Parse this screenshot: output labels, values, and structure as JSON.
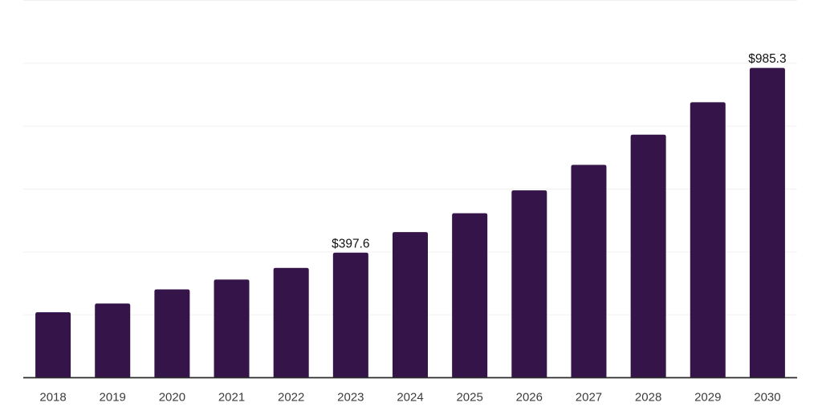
{
  "chart_data": {
    "type": "bar",
    "title": "",
    "xlabel": "",
    "ylabel": "",
    "categories": [
      "2018",
      "2019",
      "2020",
      "2021",
      "2022",
      "2023",
      "2024",
      "2025",
      "2026",
      "2027",
      "2028",
      "2029",
      "2030"
    ],
    "values": [
      208,
      236,
      281,
      312,
      349,
      397.6,
      463,
      523,
      596,
      677,
      773,
      876,
      985.3
    ],
    "value_labels": [
      null,
      null,
      null,
      null,
      null,
      "$397.6",
      null,
      null,
      null,
      null,
      null,
      null,
      "$985.3"
    ],
    "ylim": [
      0,
      1200
    ],
    "gridline_step": 200,
    "grid": true,
    "legend": false,
    "y_axis_labels_visible": false,
    "bar_color": "#341449",
    "axis_color": "#2b2b2b",
    "gridline_color": "#f1f1f1",
    "tick_label_color": "#3d3d3d",
    "value_label_color": "#111111",
    "background_color": "#ffffff"
  }
}
